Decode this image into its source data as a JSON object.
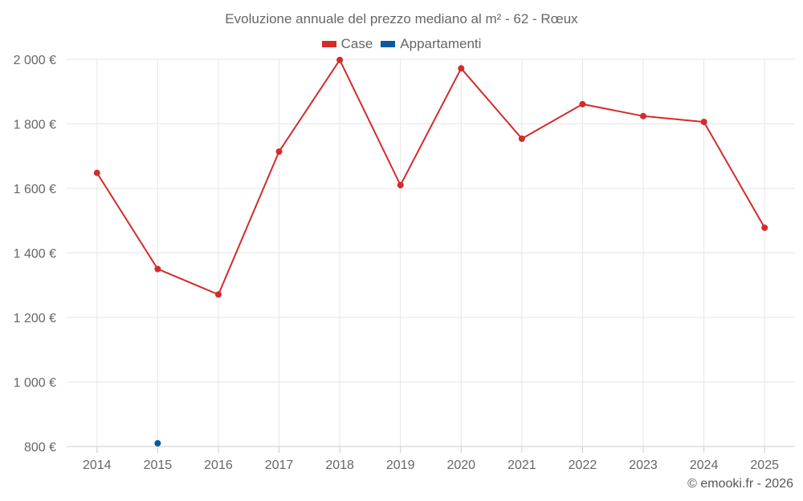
{
  "chart_data": {
    "type": "line",
    "title": "Evoluzione annuale del prezzo mediano al m² - 62 - Rœux",
    "categories": [
      "2014",
      "2015",
      "2016",
      "2017",
      "2018",
      "2019",
      "2020",
      "2021",
      "2022",
      "2023",
      "2024",
      "2025"
    ],
    "series": [
      {
        "name": "Case",
        "color": "#d42b2b",
        "values": [
          1648,
          1350,
          1271,
          1714,
          1998,
          1610,
          1972,
          1754,
          1861,
          1824,
          1806,
          1478
        ]
      },
      {
        "name": "Appartamenti",
        "color": "#0a5a9c",
        "values": [
          null,
          810,
          null,
          null,
          null,
          null,
          null,
          null,
          null,
          null,
          null,
          null
        ]
      }
    ],
    "ylim": [
      800,
      2000
    ],
    "yticks": [
      800,
      1000,
      1200,
      1400,
      1600,
      1800,
      2000
    ],
    "ytick_labels": [
      "800 €",
      "1 000 €",
      "1 200 €",
      "1 400 €",
      "1 600 €",
      "1 800 €",
      "2 000 €"
    ],
    "xlabel": "",
    "ylabel": "",
    "grid": true,
    "legend_position": "top-center"
  },
  "credit": "© emooki.fr - 2026"
}
